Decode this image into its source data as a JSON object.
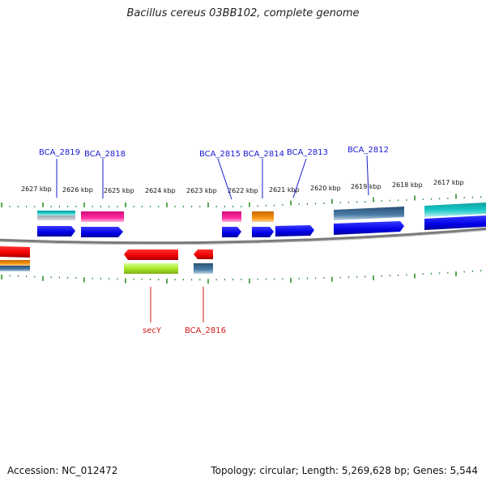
{
  "title": "Bacillus cereus 03BB102, complete genome",
  "footer": {
    "accession": "Accession: NC_012472",
    "info": "Topology: circular; Length: 5,269,628 bp; Genes: 5,544"
  },
  "kbp_labels": [
    "2627 kbp",
    "2626 kbp",
    "2625 kbp",
    "2624 kbp",
    "2623 kbp",
    "2622 kbp",
    "2621 kbp",
    "2620 kbp",
    "2619 kbp",
    "2618 kbp",
    "2617 kbp"
  ],
  "genes_top": [
    "BCA_2819",
    "BCA_2818",
    "BCA_2815",
    "BCA_2814",
    "BCA_2813",
    "BCA_2812"
  ],
  "genes_bottom": [
    "secY",
    "BCA_2816"
  ],
  "colors": {
    "forward_strand": "#0000ee",
    "reverse_strand": "#ee0000",
    "backbone": "#777777",
    "ticks": "#2f8f2f",
    "label_forward": "#1a1ad0",
    "label_reverse": "#d01818",
    "cog_cyan": "#19c2c2",
    "cog_pink": "#ee2299",
    "cog_orange": "#f08c10",
    "cog_steel": "#3f6f96",
    "cog_lime": "#a8ea2a"
  }
}
